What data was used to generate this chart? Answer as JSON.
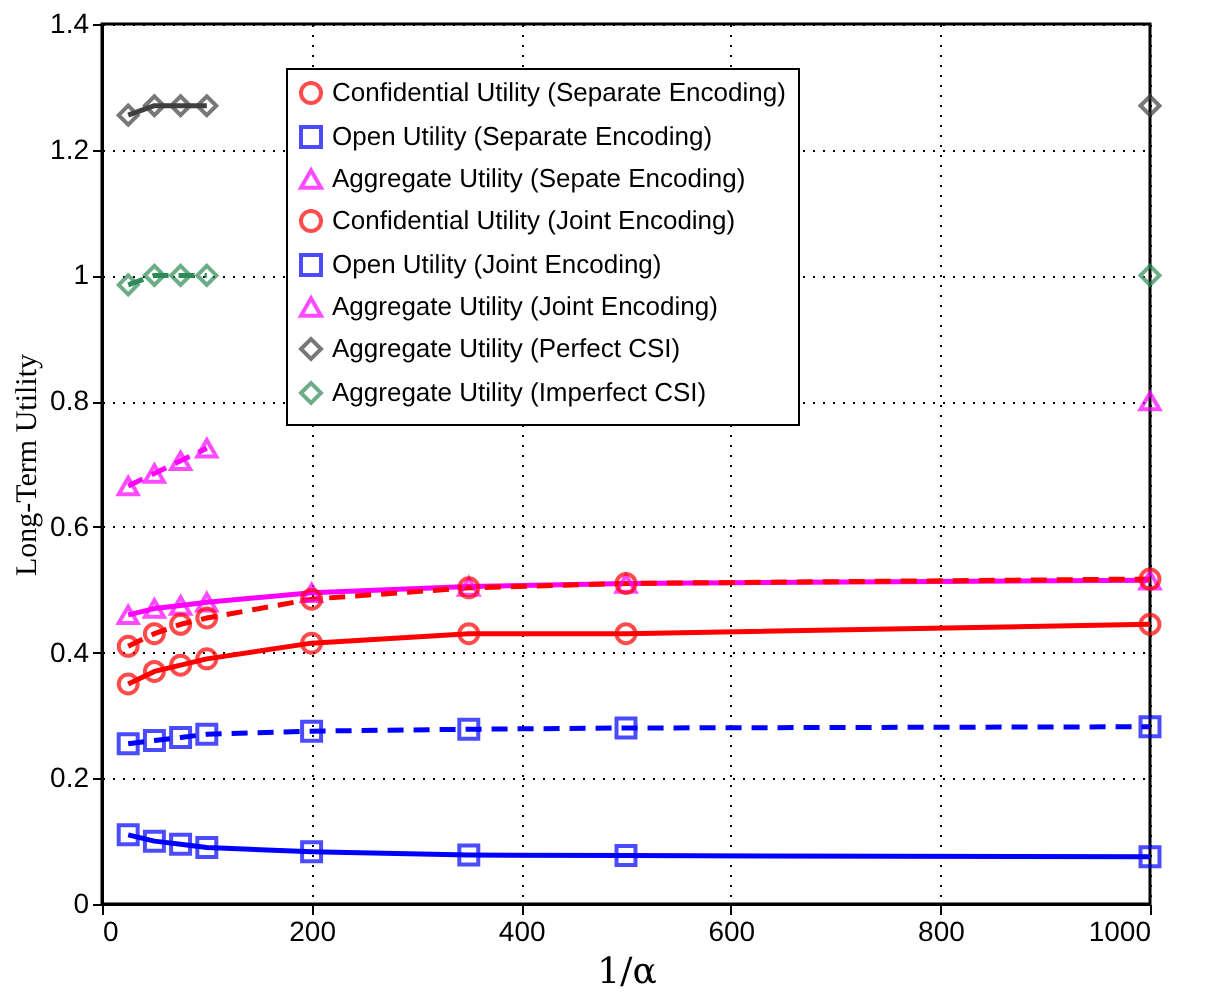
{
  "chart_data": {
    "type": "line",
    "xlabel": "1/α",
    "ylabel": "Long-Term Utility",
    "x": [
      25,
      50,
      75,
      100,
      200,
      350,
      500,
      1000
    ],
    "xlim": [
      0,
      1000
    ],
    "xticks": [
      0,
      200,
      400,
      600,
      800,
      1000
    ],
    "ylim": [
      0,
      1.4
    ],
    "yticks": [
      0,
      0.2,
      0.4,
      0.6,
      0.8,
      1,
      1.2,
      1.4
    ],
    "grid": true,
    "legend": "top",
    "series": [
      {
        "name": "Confidential Utility (Separate Encoding)",
        "color": "#ff0000",
        "marker": "circle",
        "line_style": "solid",
        "values": [
          0.35,
          0.37,
          0.38,
          0.39,
          0.415,
          0.43,
          0.43,
          0.445
        ]
      },
      {
        "name": "Open Utility (Separate  Encoding)",
        "color": "#0000ff",
        "marker": "square",
        "line_style": "solid",
        "values": [
          0.11,
          0.1,
          0.095,
          0.09,
          0.083,
          0.078,
          0.077,
          0.075
        ]
      },
      {
        "name": "Aggregate Utility (Sepate Encoding)",
        "color": "#ff00ff",
        "marker": "triangle",
        "line_style": "solid",
        "values": [
          0.46,
          0.47,
          0.475,
          0.48,
          0.495,
          0.505,
          0.51,
          0.515
        ]
      },
      {
        "name": "Confidential Utility (Joint Encoding)",
        "color": "#ff0000",
        "marker": "circle",
        "line_style": "dashed",
        "values": [
          0.41,
          0.43,
          0.445,
          0.455,
          0.485,
          0.503,
          0.51,
          0.517
        ]
      },
      {
        "name": "Open Utility (Joint Encoding)",
        "color": "#0000ff",
        "marker": "square",
        "line_style": "dashed",
        "values": [
          0.255,
          0.26,
          0.265,
          0.27,
          0.275,
          0.278,
          0.28,
          0.282
        ]
      },
      {
        "name": "Aggregate Utility (Joint Encoding)",
        "color": "#ff00ff",
        "marker": "triangle",
        "line_style": "dashed",
        "values": [
          0.665,
          0.685,
          0.705,
          0.725,
          null,
          null,
          null,
          0.8
        ]
      },
      {
        "name": "Aggregate Utility (Perfect CSI)",
        "color": "#404040",
        "marker": "diamond",
        "line_style": "solid",
        "values": [
          1.255,
          1.27,
          1.27,
          1.27,
          null,
          null,
          null,
          1.27
        ]
      },
      {
        "name": "Aggregate Utility (Imperfect CSI)",
        "color": "#2e8b57",
        "marker": "diamond",
        "line_style": "dashed",
        "values": [
          0.985,
          1.0,
          1.0,
          1.0,
          null,
          null,
          null,
          1.0
        ]
      }
    ]
  }
}
